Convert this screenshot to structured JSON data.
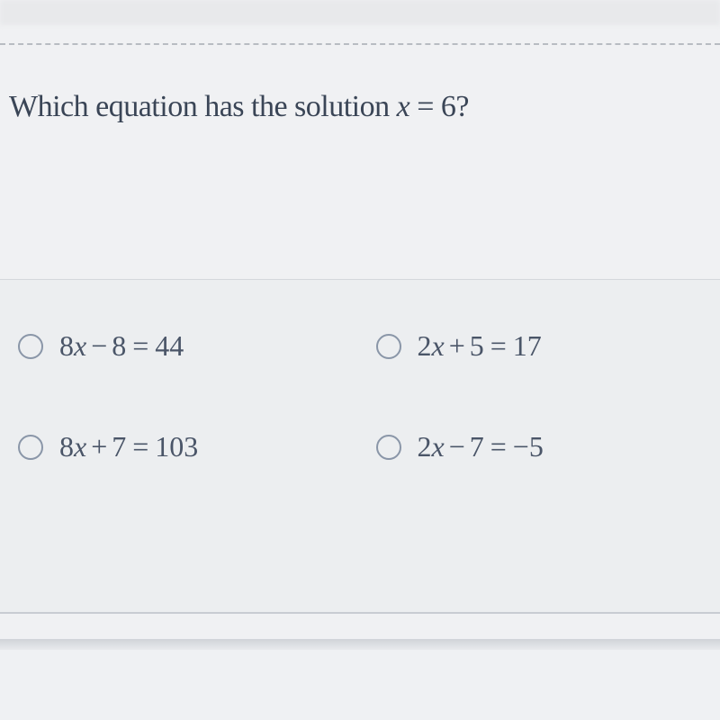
{
  "question": {
    "prefix": "Which equation has the solution ",
    "variable": "x",
    "equals": " = ",
    "value": "6",
    "suffix": "?"
  },
  "options": [
    {
      "coef": "8",
      "var": "x",
      "op": "−",
      "const": "8",
      "rhs": "44"
    },
    {
      "coef": "2",
      "var": "x",
      "op": "+",
      "const": "5",
      "rhs": "17"
    },
    {
      "coef": "8",
      "var": "x",
      "op": "+",
      "const": "7",
      "rhs": "103"
    },
    {
      "coef": "2",
      "var": "x",
      "op": "−",
      "const": "7",
      "rhs": "−5"
    }
  ],
  "colors": {
    "background": "#f0f1f3",
    "answers_bg": "#eceef0",
    "text_primary": "#3a4556",
    "text_secondary": "#4a5568",
    "radio_border": "#8a96a8",
    "dashed_border": "#b8bcc2"
  }
}
